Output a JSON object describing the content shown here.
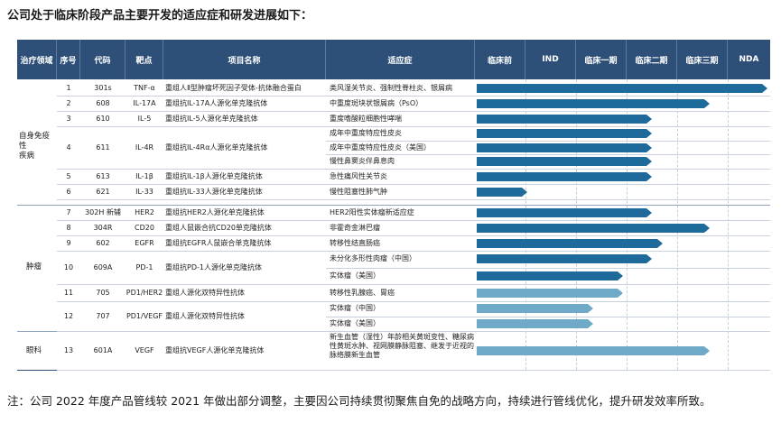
{
  "title": "公司处于临床阶段产品主要开发的适应症和研发进展如下：",
  "columns": [
    "治疗领域",
    "序号",
    "代码",
    "靶点",
    "项目名称",
    "适应症",
    "临床前",
    "IND",
    "临床一期",
    "临床二期",
    "临床三期",
    "NDA"
  ],
  "areas": [
    "自身免疫性\n疾病",
    "肿瘤",
    "眼科"
  ],
  "rows": [
    {
      "no": "1",
      "code": "301s",
      "target": "TNF-α",
      "name": "重组人Ⅱ型肿瘤坏死因子受体-抗体融合蛋白",
      "ind": "类风湿关节炎、强制性脊柱炎、银屑病",
      "progress": 1.0
    },
    {
      "no": "2",
      "code": "608",
      "target": "IL-17A",
      "name": "重组抗IL-17A人源化单克隆抗体",
      "ind": "中重度斑块状银屑病（PsO）",
      "progress": 0.8
    },
    {
      "no": "3",
      "code": "610",
      "target": "IL-5",
      "name": "重组抗IL-5人源化单克隆抗体",
      "ind": "重度嗜酸粒细胞性哮喘",
      "progress": 0.6
    },
    {
      "no": "4",
      "code": "611",
      "target": "IL-4R",
      "name": "重组抗IL-4Rα人源化单克隆抗体",
      "indications": [
        "成年中重度特应性皮炎",
        "成年中重度特应性皮炎（美国）",
        "慢性鼻窦炎伴鼻息肉"
      ],
      "progress": [
        0.6,
        0.6,
        0.6
      ]
    },
    {
      "no": "5",
      "code": "613",
      "target": "IL-1β",
      "name": "重组抗IL-1β人源化单克隆抗体",
      "ind": "急性痛风性关节炎",
      "progress": 0.6
    },
    {
      "no": "6",
      "code": "621",
      "target": "IL-33",
      "name": "重组抗IL-33人源化单克隆抗体",
      "ind": "慢性阻塞性肺气肿",
      "progress": 0.17
    },
    {
      "no": "7",
      "code": "302H 新辅",
      "target": "HER2",
      "name": "重组抗HER2人源化单克隆抗体",
      "ind": "HER2阳性实体瘤新适应症",
      "progress": 0.6
    },
    {
      "no": "8",
      "code": "304R",
      "target": "CD20",
      "name": "重组人鼠嵌合抗CD20单克隆抗体",
      "ind": "非霍奇金淋巴瘤",
      "progress": 0.8
    },
    {
      "no": "9",
      "code": "602",
      "target": "EGFR",
      "name": "重组抗EGFR人鼠嵌合单克隆抗体",
      "ind": "转移性结直肠癌",
      "progress": 0.64
    },
    {
      "no": "10",
      "code": "609A",
      "target": "PD-1",
      "name": "重组抗PD-1人源化单克隆抗体",
      "indications": [
        "未分化多形性肉瘤（中国）",
        "实体瘤（美国）"
      ],
      "progress": [
        0.6,
        0.5
      ]
    },
    {
      "no": "11",
      "code": "705",
      "target": "PD1/HER2",
      "name": "重组人源化双特异性抗体",
      "ind": "转移性乳腺癌、胃癌",
      "progress": 0.5
    },
    {
      "no": "12",
      "code": "707",
      "target": "PD1/VEGF",
      "name": "重组人源化双特异性抗体",
      "indications": [
        "实体瘤（中国）",
        "实体瘤（美国）"
      ],
      "progress": [
        0.4,
        0.4
      ]
    },
    {
      "no": "13",
      "code": "601A",
      "target": "VEGF",
      "name": "重组抗VEGF人源化单克隆抗体",
      "ind": "新生血管（湿性）年龄相关黄斑变性、糖尿病性黄斑水肿、视网膜静脉阻塞、继发于近视的脉络膜新生血管",
      "progress": 0.8
    }
  ],
  "note": "注：公司 2022 年度产品管线较 2021 年做出部分调整，主要因公司持续贯彻聚焦自免的战略方向，持续进行管线优化，提升研发效率所致。"
}
